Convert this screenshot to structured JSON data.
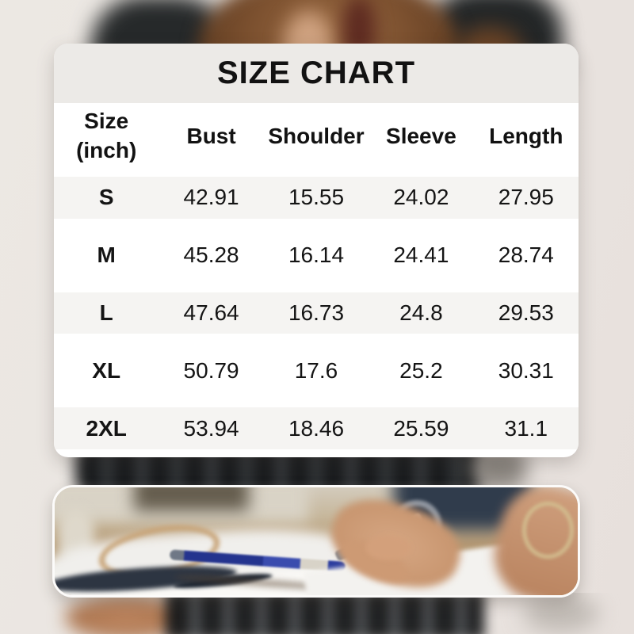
{
  "title": "SIZE CHART",
  "size_chart": {
    "title": "SIZE CHART",
    "header": {
      "size_label_line1": "Size",
      "size_label_line2": "(inch)",
      "cols": [
        "Bust",
        "Shoulder",
        "Sleeve",
        "Length"
      ]
    },
    "rows": [
      {
        "size": "S",
        "values": [
          "42.91",
          "15.55",
          "24.02",
          "27.95"
        ]
      },
      {
        "size": "M",
        "values": [
          "45.28",
          "16.14",
          "24.41",
          "28.74"
        ]
      },
      {
        "size": "L",
        "values": [
          "47.64",
          "16.73",
          "24.8",
          "29.53"
        ]
      },
      {
        "size": "XL",
        "values": [
          "50.79",
          "17.6",
          "25.2",
          "30.31"
        ]
      },
      {
        "size": "2XL",
        "values": [
          "53.94",
          "18.46",
          "25.59",
          "31.1"
        ]
      }
    ]
  },
  "chart_data": {
    "type": "table",
    "title": "SIZE CHART",
    "unit": "inch",
    "columns": [
      "Size (inch)",
      "Bust",
      "Shoulder",
      "Sleeve",
      "Length"
    ],
    "rows": [
      [
        "S",
        42.91,
        15.55,
        24.02,
        27.95
      ],
      [
        "M",
        45.28,
        16.14,
        24.41,
        28.74
      ],
      [
        "L",
        47.64,
        16.73,
        24.8,
        29.53
      ],
      [
        "XL",
        50.79,
        17.6,
        25.2,
        30.31
      ],
      [
        "2XL",
        53.94,
        18.46,
        25.59,
        31.1
      ]
    ]
  },
  "colors": {
    "card_background": "#ffffff",
    "card_header_band": "#eceae7",
    "row_stripe": "#f5f4f2",
    "text": "#121212",
    "page_backdrop_beige": "#eae5e1"
  }
}
